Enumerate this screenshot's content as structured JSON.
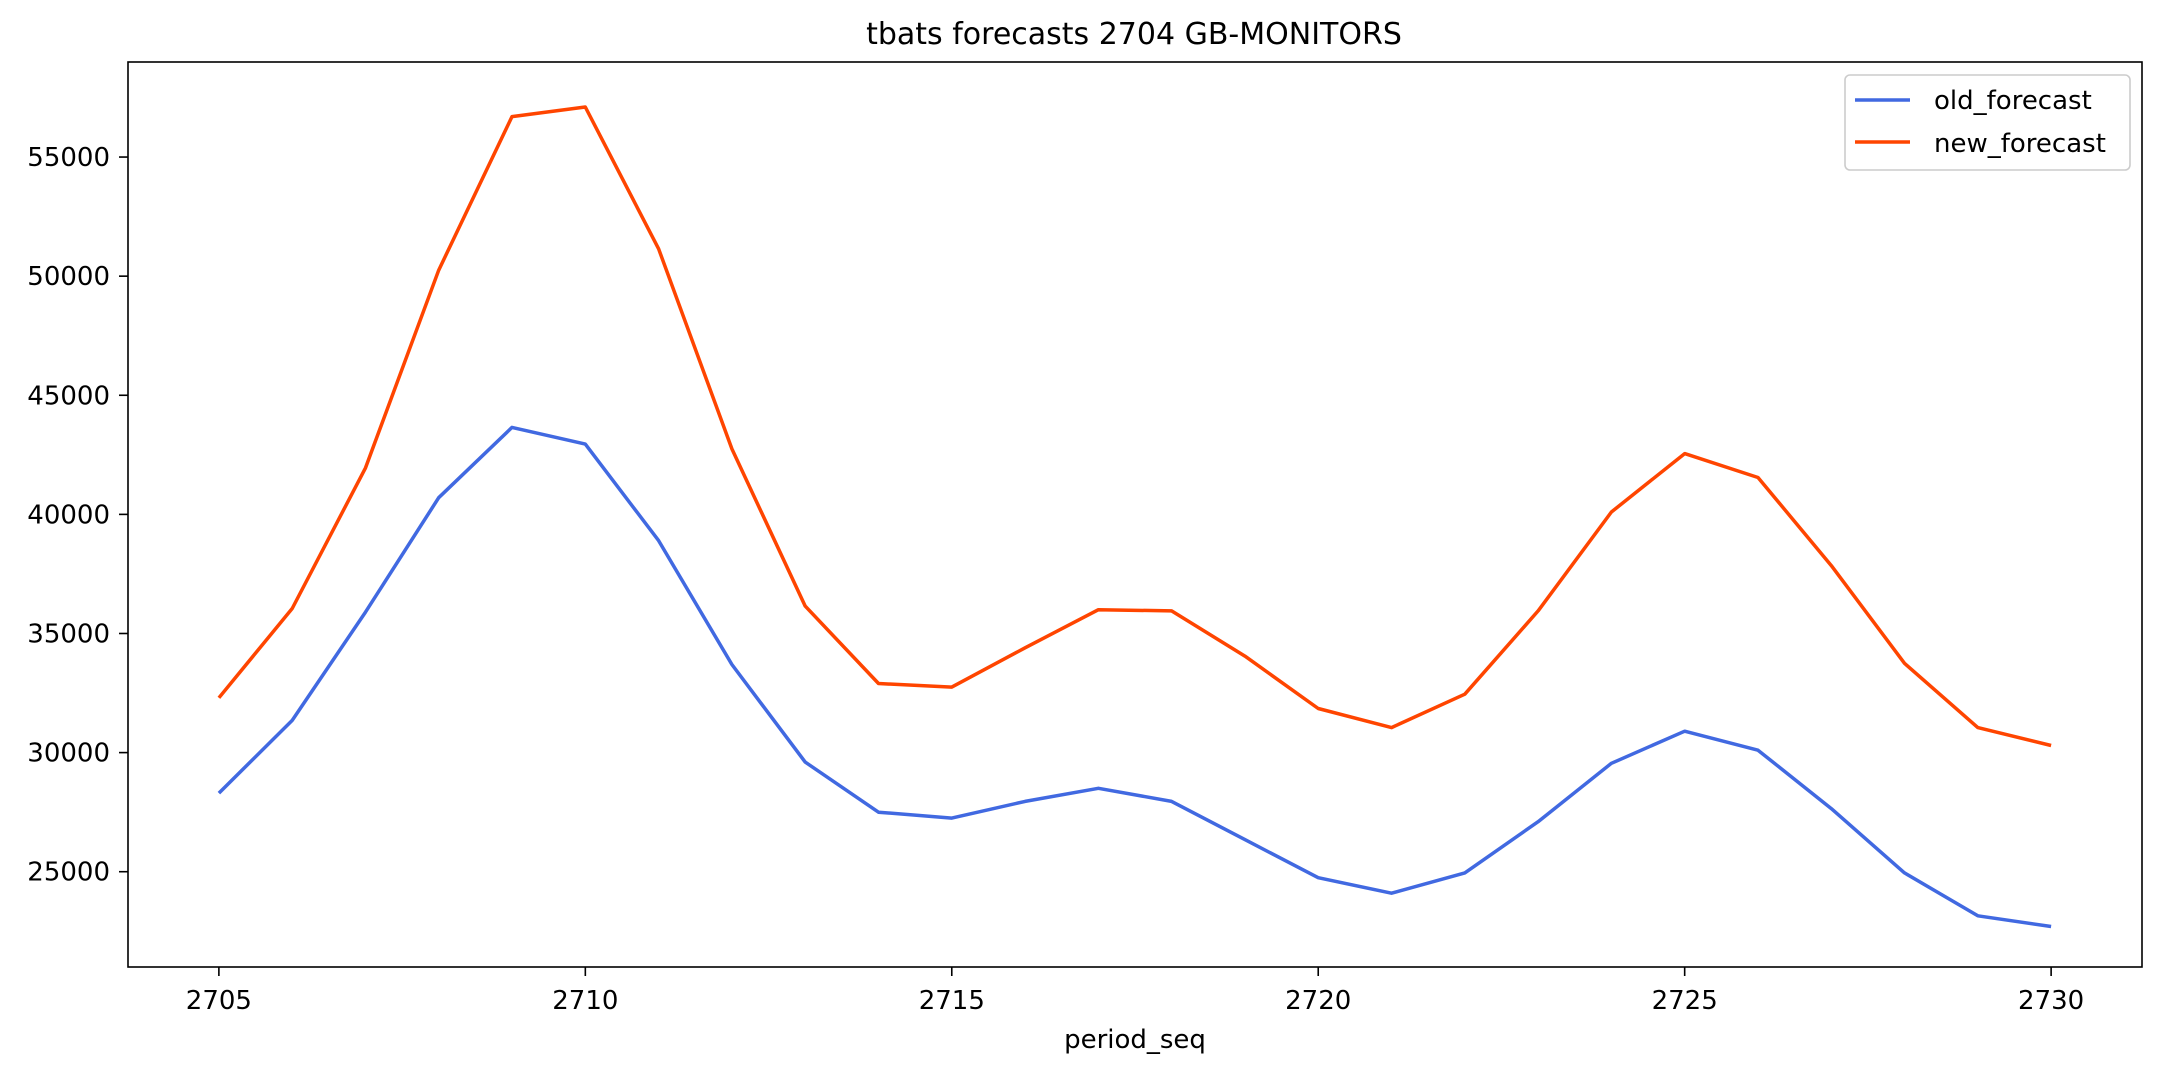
{
  "chart_data": {
    "type": "line",
    "title": "tbats forecasts 2704 GB-MONITORS",
    "xlabel": "period_seq",
    "ylabel": "",
    "x": [
      2705,
      2706,
      2707,
      2708,
      2709,
      2710,
      2711,
      2712,
      2713,
      2714,
      2715,
      2716,
      2717,
      2718,
      2719,
      2720,
      2721,
      2722,
      2723,
      2724,
      2725,
      2726,
      2727,
      2728,
      2729,
      2730
    ],
    "xlim": [
      2703.76,
      2731.24
    ],
    "ylim": [
      21000,
      58990
    ],
    "xticks": [
      2705,
      2710,
      2715,
      2720,
      2725,
      2730
    ],
    "yticks": [
      25000,
      30000,
      35000,
      40000,
      45000,
      50000,
      55000
    ],
    "series": [
      {
        "name": "old_forecast",
        "color": "#4169e1",
        "values": [
          28300,
          31350,
          35900,
          40700,
          43650,
          42950,
          38900,
          33700,
          29600,
          27500,
          27250,
          27950,
          28500,
          27950,
          26350,
          24750,
          24100,
          24950,
          27100,
          29550,
          30900,
          30100,
          27650,
          24950,
          23150,
          22700
        ]
      },
      {
        "name": "new_forecast",
        "color": "#ff4500",
        "values": [
          32300,
          36050,
          41950,
          50250,
          56700,
          57100,
          51150,
          42750,
          36150,
          32900,
          32750,
          34400,
          36000,
          35950,
          34050,
          31850,
          31050,
          32450,
          35950,
          40100,
          42550,
          41550,
          37850,
          33750,
          31050,
          30300
        ]
      }
    ],
    "grid": false,
    "legend_position": "top-right"
  }
}
